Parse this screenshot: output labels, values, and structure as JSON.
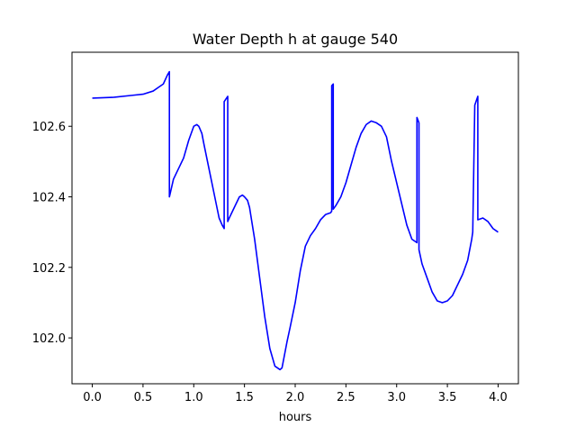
{
  "chart_data": {
    "type": "line",
    "title": "Water Depth h at gauge 540",
    "xlabel": "hours",
    "ylabel": "",
    "xlim": [
      -0.2,
      4.2
    ],
    "ylim": [
      101.87,
      102.81
    ],
    "xticks": [
      0.0,
      0.5,
      1.0,
      1.5,
      2.0,
      2.5,
      3.0,
      3.5,
      4.0
    ],
    "xtick_labels": [
      "0.0",
      "0.5",
      "1.0",
      "1.5",
      "2.0",
      "2.5",
      "3.0",
      "3.5",
      "4.0"
    ],
    "yticks": [
      102.0,
      102.2,
      102.4,
      102.6
    ],
    "ytick_labels": [
      "102.0",
      "102.2",
      "102.4",
      "102.6"
    ],
    "grid": false,
    "series": [
      {
        "color": "#0000ff",
        "x": [
          0.0,
          0.2,
          0.4,
          0.5,
          0.6,
          0.65,
          0.7,
          0.74,
          0.76,
          0.76,
          0.8,
          0.85,
          0.9,
          0.95,
          1.0,
          1.03,
          1.05,
          1.08,
          1.1,
          1.15,
          1.2,
          1.25,
          1.28,
          1.3,
          1.3,
          1.335,
          1.335,
          1.35,
          1.4,
          1.45,
          1.48,
          1.5,
          1.53,
          1.55,
          1.6,
          1.65,
          1.7,
          1.75,
          1.8,
          1.85,
          1.87,
          1.9,
          1.92,
          1.95,
          2.0,
          2.05,
          2.1,
          2.15,
          2.2,
          2.25,
          2.3,
          2.35,
          2.36,
          2.36,
          2.375,
          2.375,
          2.4,
          2.45,
          2.5,
          2.55,
          2.6,
          2.65,
          2.7,
          2.75,
          2.8,
          2.85,
          2.9,
          2.95,
          3.0,
          3.05,
          3.1,
          3.15,
          3.2,
          3.2,
          3.22,
          3.22,
          3.25,
          3.3,
          3.35,
          3.4,
          3.45,
          3.5,
          3.55,
          3.6,
          3.65,
          3.7,
          3.74,
          3.75,
          3.77,
          3.8,
          3.8,
          3.85,
          3.9,
          3.95,
          4.0
        ],
        "y": [
          102.68,
          102.682,
          102.688,
          102.691,
          102.7,
          102.71,
          102.72,
          102.745,
          102.755,
          102.4,
          102.45,
          102.48,
          102.51,
          102.56,
          102.6,
          102.605,
          102.6,
          102.58,
          102.55,
          102.48,
          102.41,
          102.34,
          102.32,
          102.31,
          102.67,
          102.685,
          102.33,
          102.34,
          102.37,
          102.4,
          102.405,
          102.4,
          102.39,
          102.37,
          102.28,
          102.17,
          102.06,
          101.97,
          101.92,
          101.91,
          101.915,
          101.96,
          101.99,
          102.03,
          102.1,
          102.19,
          102.26,
          102.29,
          102.31,
          102.335,
          102.35,
          102.355,
          102.36,
          102.715,
          102.72,
          102.365,
          102.375,
          102.4,
          102.44,
          102.49,
          102.54,
          102.58,
          102.605,
          102.615,
          102.61,
          102.6,
          102.57,
          102.5,
          102.44,
          102.38,
          102.32,
          102.28,
          102.27,
          102.625,
          102.61,
          102.25,
          102.21,
          102.17,
          102.13,
          102.105,
          102.1,
          102.105,
          102.12,
          102.15,
          102.18,
          102.22,
          102.28,
          102.3,
          102.66,
          102.685,
          102.335,
          102.34,
          102.33,
          102.31,
          102.3
        ]
      }
    ]
  }
}
